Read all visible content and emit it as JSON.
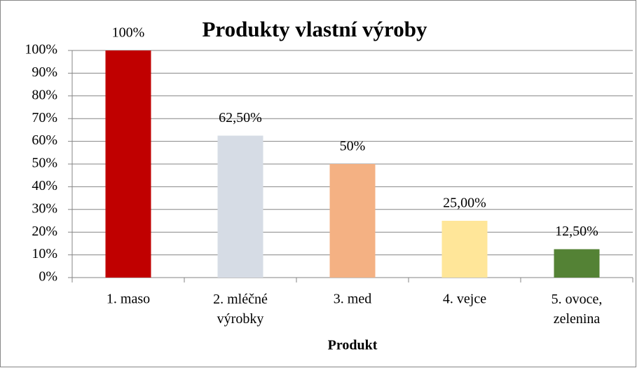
{
  "chart_data": {
    "type": "bar",
    "title": "Produkty vlastní výroby",
    "x_label": "Produkt",
    "categories": [
      "1. maso",
      "2. mléčné výrobky",
      "3. med",
      "4. vejce",
      "5. ovoce, zelenina"
    ],
    "values": [
      100,
      62.5,
      50,
      25,
      12.5
    ],
    "value_labels": [
      "100%",
      "62,50%",
      "50%",
      "25,00%",
      "12,50%"
    ],
    "colors": [
      "#c00000",
      "#d6dce5",
      "#f4b183",
      "#ffe699",
      "#548235"
    ],
    "ylim": [
      0,
      100
    ],
    "yticks": [
      {
        "value": 0,
        "label": "0%"
      },
      {
        "value": 10,
        "label": "10%"
      },
      {
        "value": 20,
        "label": "20%"
      },
      {
        "value": 30,
        "label": "30%"
      },
      {
        "value": 40,
        "label": "40%"
      },
      {
        "value": 50,
        "label": "50%"
      },
      {
        "value": 60,
        "label": "60%"
      },
      {
        "value": 70,
        "label": "70%"
      },
      {
        "value": 80,
        "label": "80%"
      },
      {
        "value": 90,
        "label": "90%"
      },
      {
        "value": 100,
        "label": "100%"
      }
    ],
    "grid": true
  }
}
